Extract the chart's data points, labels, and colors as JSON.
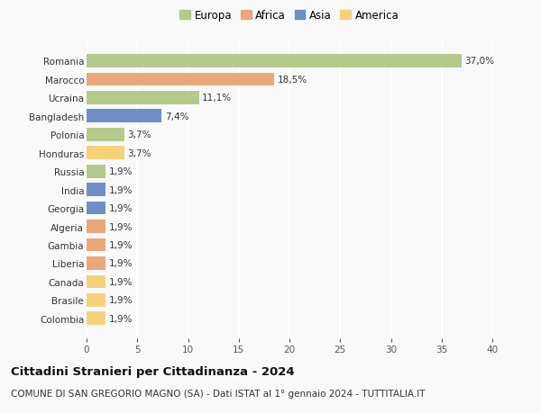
{
  "countries": [
    "Romania",
    "Marocco",
    "Ucraina",
    "Bangladesh",
    "Polonia",
    "Honduras",
    "Russia",
    "India",
    "Georgia",
    "Algeria",
    "Gambia",
    "Liberia",
    "Canada",
    "Brasile",
    "Colombia"
  ],
  "values": [
    37.0,
    18.5,
    11.1,
    7.4,
    3.7,
    3.7,
    1.9,
    1.9,
    1.9,
    1.9,
    1.9,
    1.9,
    1.9,
    1.9,
    1.9
  ],
  "labels": [
    "37,0%",
    "18,5%",
    "11,1%",
    "7,4%",
    "3,7%",
    "3,7%",
    "1,9%",
    "1,9%",
    "1,9%",
    "1,9%",
    "1,9%",
    "1,9%",
    "1,9%",
    "1,9%",
    "1,9%"
  ],
  "colors": [
    "#b5c98a",
    "#e8a87c",
    "#b5c98a",
    "#6e8fc5",
    "#b5c98a",
    "#f5d27a",
    "#b5c98a",
    "#6e8fc5",
    "#6e8fc5",
    "#e8a87c",
    "#e8a87c",
    "#e8a87c",
    "#f5d27a",
    "#f5d27a",
    "#f5d27a"
  ],
  "legend_labels": [
    "Europa",
    "Africa",
    "Asia",
    "America"
  ],
  "legend_colors": [
    "#b5c98a",
    "#e8a87c",
    "#6e8fc5",
    "#f5d27a"
  ],
  "title": "Cittadini Stranieri per Cittadinanza - 2024",
  "subtitle": "COMUNE DI SAN GREGORIO MAGNO (SA) - Dati ISTAT al 1° gennaio 2024 - TUTTITALIA.IT",
  "xlim": [
    0,
    40
  ],
  "xticks": [
    0,
    5,
    10,
    15,
    20,
    25,
    30,
    35,
    40
  ],
  "background_color": "#f9f9f9",
  "grid_color": "#ffffff",
  "bar_height": 0.72,
  "title_fontsize": 9.5,
  "subtitle_fontsize": 7.5,
  "tick_fontsize": 7.5,
  "label_fontsize": 7.5,
  "legend_fontsize": 8.5
}
